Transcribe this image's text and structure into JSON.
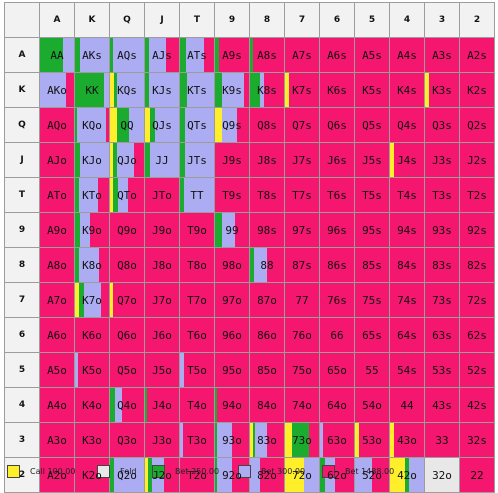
{
  "colors": {
    "call": "#ffef2a",
    "fold": "#e8e8e8",
    "bet250": "#1bab2e",
    "bet300": "#acacf3",
    "bet1488": "#f5176f"
  },
  "ranks": [
    "A",
    "K",
    "Q",
    "J",
    "T",
    "9",
    "8",
    "7",
    "6",
    "5",
    "4",
    "3",
    "2"
  ],
  "rows": [
    [
      "AA",
      "AKs",
      "AQs",
      "AJs",
      "ATs",
      "A9s",
      "A8s",
      "A7s",
      "A6s",
      "A5s",
      "A4s",
      "A3s",
      "A2s"
    ],
    [
      "AKo",
      "KK",
      "KQs",
      "KJs",
      "KTs",
      "K9s",
      "K8s",
      "K7s",
      "K6s",
      "K5s",
      "K4s",
      "K3s",
      "K2s"
    ],
    [
      "AQo",
      "KQo",
      "QQ",
      "QJs",
      "QTs",
      "Q9s",
      "Q8s",
      "Q7s",
      "Q6s",
      "Q5s",
      "Q4s",
      "Q3s",
      "Q2s"
    ],
    [
      "AJo",
      "KJo",
      "QJo",
      "JJ",
      "JTs",
      "J9s",
      "J8s",
      "J7s",
      "J6s",
      "J5s",
      "J4s",
      "J3s",
      "J2s"
    ],
    [
      "ATo",
      "KTo",
      "QTo",
      "JTo",
      "TT",
      "T9s",
      "T8s",
      "T7s",
      "T6s",
      "T5s",
      "T4s",
      "T3s",
      "T2s"
    ],
    [
      "A9o",
      "K9o",
      "Q9o",
      "J9o",
      "T9o",
      "99",
      "98s",
      "97s",
      "96s",
      "95s",
      "94s",
      "93s",
      "92s"
    ],
    [
      "A8o",
      "K8o",
      "Q8o",
      "J8o",
      "T8o",
      "98o",
      "88",
      "87s",
      "86s",
      "85s",
      "84s",
      "83s",
      "82s"
    ],
    [
      "A7o",
      "K7o",
      "Q7o",
      "J7o",
      "T7o",
      "97o",
      "87o",
      "77",
      "76s",
      "75s",
      "74s",
      "73s",
      "72s"
    ],
    [
      "A6o",
      "K6o",
      "Q6o",
      "J6o",
      "T6o",
      "96o",
      "86o",
      "76o",
      "66",
      "65s",
      "64s",
      "63s",
      "62s"
    ],
    [
      "A5o",
      "K5o",
      "Q5o",
      "J5o",
      "T5o",
      "95o",
      "85o",
      "75o",
      "65o",
      "55",
      "54s",
      "53s",
      "52s"
    ],
    [
      "A4o",
      "K4o",
      "Q4o",
      "J4o",
      "T4o",
      "94o",
      "84o",
      "74o",
      "64o",
      "54o",
      "44",
      "43s",
      "42s"
    ],
    [
      "A3o",
      "K3o",
      "Q3o",
      "J3o",
      "T3o",
      "93o",
      "83o",
      "73o",
      "63o",
      "53o",
      "43o",
      "33",
      "32s"
    ],
    [
      "A2o",
      "K2o",
      "Q2o",
      "J2o",
      "T2o",
      "92o",
      "82o",
      "72o",
      "62o",
      "52o",
      "42o",
      "32o",
      "22"
    ]
  ],
  "mix": {
    "AA": [
      0,
      0,
      0.68,
      0.32,
      0
    ],
    "AKs": [
      0,
      0,
      0.15,
      0.85,
      0
    ],
    "AQs": [
      0,
      0,
      0.1,
      0.9,
      0
    ],
    "AJs": [
      0,
      0,
      0.12,
      0.5,
      0.38
    ],
    "ATs": [
      0,
      0,
      0.18,
      0.52,
      0.3
    ],
    "A9s": [
      0,
      0,
      0.12,
      0,
      0.88
    ],
    "A8s": [
      0,
      0,
      0.1,
      0,
      0.9
    ],
    "AKo": [
      0,
      0,
      0,
      0.75,
      0.25
    ],
    "KK": [
      0,
      0,
      0.85,
      0.15,
      0
    ],
    "KQs": [
      0.12,
      0,
      0.1,
      0.78,
      0
    ],
    "KJs": [
      0,
      0,
      0.12,
      0.88,
      0
    ],
    "KTs": [
      0,
      0,
      0.2,
      0.8,
      0
    ],
    "K9s": [
      0,
      0,
      0.22,
      0.62,
      0.16
    ],
    "K8s": [
      0,
      0,
      0.28,
      0.12,
      0.6
    ],
    "K7s": [
      0.12,
      0,
      0,
      0,
      0.88
    ],
    "K3s": [
      0.12,
      0,
      0,
      0,
      0.88
    ],
    "KQo": [
      0,
      0,
      0.05,
      0.85,
      0.1
    ],
    "QQ": [
      0.2,
      0,
      0.35,
      0.45,
      0
    ],
    "QJs": [
      0.15,
      0,
      0.15,
      0.7,
      0
    ],
    "QTs": [
      0,
      0,
      0.15,
      0.85,
      0
    ],
    "Q9s": [
      0.2,
      0,
      0,
      0.45,
      0.35
    ],
    "KJo": [
      0,
      0,
      0.15,
      0.85,
      0
    ],
    "QJo": [
      0.1,
      0,
      0.1,
      0.5,
      0.3
    ],
    "JJ": [
      0,
      0,
      0.15,
      0.85,
      0
    ],
    "JTs": [
      0,
      0,
      0.15,
      0.85,
      0
    ],
    "J4s": [
      0.12,
      0,
      0,
      0,
      0.88
    ],
    "KTo": [
      0,
      0,
      0.12,
      0.55,
      0.33
    ],
    "QTo": [
      0.08,
      0,
      0.15,
      0.3,
      0.47
    ],
    "TT": [
      0,
      0,
      0.12,
      0.88,
      0
    ],
    "K9o": [
      0,
      0,
      0.15,
      0.3,
      0.55
    ],
    "99": [
      0,
      0,
      0.2,
      0.4,
      0.4
    ],
    "K8o": [
      0,
      0,
      0.12,
      0.6,
      0.28
    ],
    "88": [
      0,
      0,
      0.12,
      0.38,
      0.5
    ],
    "K7o": [
      0.12,
      0,
      0.15,
      0.5,
      0.23
    ],
    "Q7o": [
      0.1,
      0,
      0,
      0,
      0.9
    ],
    "K5o": [
      0,
      0,
      0,
      0.1,
      0.9
    ],
    "T5o": [
      0,
      0,
      0,
      0.12,
      0.88
    ],
    "Q4o": [
      0,
      0,
      0.15,
      0.2,
      0.65
    ],
    "J4o": [
      0,
      0,
      0.06,
      0,
      0.94
    ],
    "94o": [
      0,
      0,
      0.06,
      0,
      0.94
    ],
    "93o": [
      0,
      0,
      0.06,
      0.45,
      0.49
    ],
    "83o": [
      0.1,
      0,
      0.05,
      0.35,
      0.5
    ],
    "73o": [
      0.2,
      0,
      0.5,
      0,
      0.3
    ],
    "63o": [
      0,
      0,
      0,
      0.1,
      0.9
    ],
    "53o": [
      0.12,
      0,
      0,
      0,
      0.88
    ],
    "43o": [
      0.12,
      0,
      0,
      0,
      0.88
    ],
    "Q2o": [
      0,
      0,
      0.12,
      0.88,
      0
    ],
    "J2o": [
      0.08,
      0,
      0.12,
      0.35,
      0.45
    ],
    "92o": [
      0,
      0,
      0.06,
      0.45,
      0.49
    ],
    "82o": [
      0,
      0,
      0,
      0.3,
      0.7
    ],
    "72o": [
      0.55,
      0,
      0,
      0.45,
      0
    ],
    "62o": [
      0,
      0,
      0.15,
      0.3,
      0.55
    ],
    "52o": [
      0,
      0,
      0,
      0.5,
      0.5
    ],
    "42o": [
      0.45,
      0,
      0.12,
      0.43,
      0
    ],
    "32o": [
      0,
      1,
      0,
      0,
      0
    ],
    "T3o": [
      0,
      0,
      0,
      0.1,
      0.9
    ]
  },
  "legend": [
    {
      "key": "call",
      "label": "Call 100.00"
    },
    {
      "key": "fold",
      "label": "Fold"
    },
    {
      "key": "bet250",
      "label": "Bet 250.00"
    },
    {
      "key": "bet300",
      "label": "Bet 300.00"
    },
    {
      "key": "bet1488",
      "label": "Bet 1488.00"
    }
  ]
}
